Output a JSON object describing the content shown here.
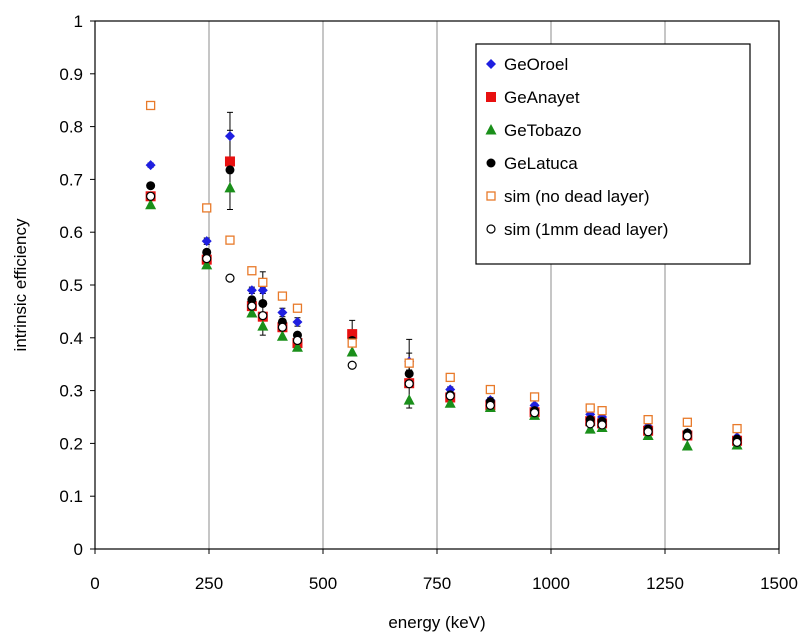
{
  "chart_data": {
    "type": "scatter",
    "title": "",
    "xlabel": "energy (keV)",
    "ylabel": "intrinsic efficiency",
    "xlim": [
      0,
      1500
    ],
    "ylim": [
      0,
      1
    ],
    "xticks": [
      0,
      250,
      500,
      750,
      1000,
      1250,
      1500
    ],
    "yticks": [
      0,
      0.1,
      0.2,
      0.3,
      0.4,
      0.5,
      0.6,
      0.7,
      0.8,
      0.9,
      1
    ],
    "grid": "vertical",
    "legend_position": "top-right",
    "series": [
      {
        "name": "GeOroel",
        "marker": "diamond",
        "color": "#1f1fe0",
        "x": [
          122,
          245,
          296,
          344,
          368,
          411,
          444,
          564,
          689,
          779,
          867,
          964,
          1086,
          1112,
          1213,
          1299,
          1408
        ],
        "y": [
          0.727,
          0.583,
          0.782,
          0.49,
          0.49,
          0.448,
          0.43,
          0.4,
          0.355,
          0.302,
          0.282,
          0.272,
          0.255,
          0.25,
          0.232,
          0.22,
          0.212
        ],
        "err": [
          0.004,
          0.006,
          0.045,
          0.006,
          0.006,
          0.008,
          0.008,
          0.033,
          0.016,
          0.005,
          0.005,
          0.004,
          0.004,
          0.004,
          0.003,
          0.004,
          0.003
        ]
      },
      {
        "name": "GeAnayet",
        "marker": "square",
        "color": "#e81010",
        "x": [
          122,
          245,
          296,
          344,
          368,
          411,
          444,
          564,
          689,
          779,
          867,
          964,
          1086,
          1112,
          1213,
          1299,
          1408
        ],
        "y": [
          0.668,
          0.548,
          0.734,
          0.46,
          0.44,
          0.42,
          0.39,
          0.407,
          0.314,
          0.287,
          0.272,
          0.259,
          0.242,
          0.238,
          0.224,
          0.215,
          0.205
        ]
      },
      {
        "name": "GeTobazo",
        "marker": "triangle",
        "color": "#1a8f1a",
        "x": [
          122,
          245,
          296,
          344,
          368,
          411,
          444,
          564,
          689,
          779,
          867,
          964,
          1086,
          1112,
          1213,
          1299,
          1408
        ],
        "y": [
          0.652,
          0.538,
          0.684,
          0.447,
          0.422,
          0.403,
          0.382,
          0.373,
          0.282,
          0.276,
          0.268,
          0.253,
          0.227,
          0.23,
          0.215,
          0.195,
          0.197
        ]
      },
      {
        "name": "GeLatuca",
        "marker": "circle",
        "color": "#000000",
        "x": [
          122,
          245,
          296,
          344,
          368,
          411,
          444,
          564,
          689,
          779,
          867,
          964,
          1086,
          1112,
          1213,
          1299,
          1408
        ],
        "y": [
          0.688,
          0.562,
          0.718,
          0.472,
          0.465,
          0.43,
          0.405,
          0.395,
          0.332,
          0.292,
          0.279,
          0.262,
          0.245,
          0.242,
          0.227,
          0.22,
          0.208
        ],
        "err": [
          0.0,
          0.0,
          0.075,
          0.0,
          0.06,
          0.0,
          0.0,
          0.0,
          0.065,
          0.0,
          0.0,
          0.0,
          0.0,
          0.0,
          0.0,
          0.0,
          0.0
        ]
      },
      {
        "name": "sim (no dead layer)",
        "marker": "open-square",
        "color": "#e87a2a",
        "x": [
          122,
          245,
          296,
          344,
          368,
          411,
          444,
          564,
          689,
          779,
          867,
          964,
          1086,
          1112,
          1213,
          1299,
          1408
        ],
        "y": [
          0.84,
          0.646,
          0.585,
          0.527,
          0.505,
          0.479,
          0.456,
          0.39,
          0.352,
          0.325,
          0.302,
          0.288,
          0.267,
          0.262,
          0.245,
          0.24,
          0.228
        ]
      },
      {
        "name": "sim (1mm  dead layer)",
        "marker": "open-circle",
        "color": "#000000",
        "x": [
          122,
          245,
          296,
          344,
          368,
          411,
          444,
          564,
          689,
          779,
          867,
          964,
          1086,
          1112,
          1213,
          1299,
          1408
        ],
        "y": [
          0.668,
          0.55,
          0.513,
          0.46,
          0.442,
          0.42,
          0.395,
          0.348,
          0.313,
          0.29,
          0.272,
          0.258,
          0.237,
          0.235,
          0.222,
          0.214,
          0.202
        ]
      }
    ]
  }
}
